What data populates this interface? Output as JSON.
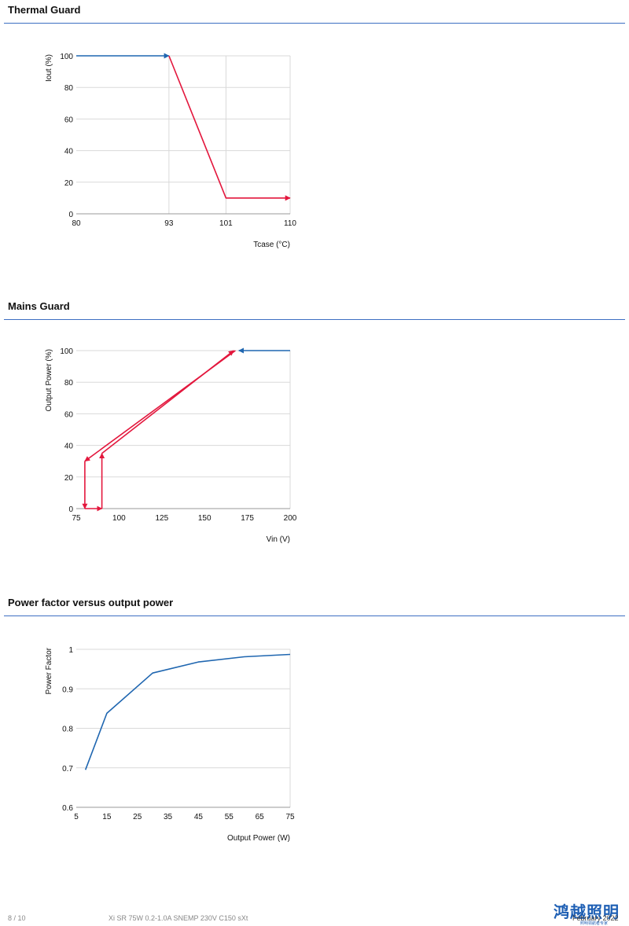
{
  "sections": [
    {
      "title": "Thermal Guard"
    },
    {
      "title": "Mains Guard"
    },
    {
      "title": "Power factor versus output power"
    }
  ],
  "chart_data": [
    {
      "type": "line",
      "title": "Thermal Guard",
      "xlabel": "Tcase (°C)",
      "ylabel": "Iout (%)",
      "xlim": [
        80,
        110
      ],
      "ylim": [
        0,
        100
      ],
      "xticks": [
        80,
        93,
        101,
        110
      ],
      "yticks": [
        0,
        20,
        40,
        60,
        80,
        100
      ],
      "grid": true,
      "series": [
        {
          "color": "#1f66b0",
          "x": [
            80,
            93
          ],
          "y": [
            100,
            100
          ]
        },
        {
          "color": "#e3173d",
          "x": [
            93,
            101,
            110
          ],
          "y": [
            100,
            10,
            10
          ]
        }
      ]
    },
    {
      "type": "line",
      "title": "Mains Guard",
      "xlabel": "Vin (V)",
      "ylabel": "Output Power (%)",
      "xlim": [
        75,
        200
      ],
      "ylim": [
        0,
        100
      ],
      "xticks": [
        75,
        100,
        125,
        150,
        175,
        200
      ],
      "yticks": [
        0,
        20,
        40,
        60,
        80,
        100
      ],
      "grid": true,
      "series": [
        {
          "color": "#1f66b0",
          "x": [
            200,
            170
          ],
          "y": [
            100,
            100
          ]
        },
        {
          "color": "#e3173d",
          "x": [
            168,
            80
          ],
          "y": [
            100,
            30
          ]
        },
        {
          "color": "#e3173d",
          "x": [
            80,
            80
          ],
          "y": [
            30,
            0
          ]
        },
        {
          "color": "#e3173d",
          "x": [
            80,
            90
          ],
          "y": [
            0,
            0
          ]
        },
        {
          "color": "#e3173d",
          "x": [
            90,
            90
          ],
          "y": [
            0,
            35
          ]
        },
        {
          "color": "#e3173d",
          "x": [
            90,
            167
          ],
          "y": [
            35,
            100
          ]
        }
      ]
    },
    {
      "type": "line",
      "title": "Power factor versus output power",
      "xlabel": "Output Power (W)",
      "ylabel": "Power Factor",
      "xlim": [
        5,
        75
      ],
      "ylim": [
        0.6,
        1
      ],
      "xticks": [
        5,
        15,
        25,
        35,
        45,
        55,
        65,
        75
      ],
      "yticks": [
        0.6,
        0.7,
        0.8,
        0.9,
        1
      ],
      "ytick_labels": [
        "0.6",
        "0.7",
        "0.8",
        "0.9",
        "1"
      ],
      "grid": true,
      "series": [
        {
          "color": "#1f66b0",
          "x": [
            8,
            15,
            30,
            45,
            60,
            75
          ],
          "y": [
            0.695,
            0.838,
            0.94,
            0.968,
            0.981,
            0.987
          ]
        }
      ]
    }
  ],
  "footer": {
    "page": "8 / 10",
    "product": "Xi SR 75W 0.2-1.0A SNEMP 230V C150 sXt",
    "date": "February 2022"
  },
  "watermark": {
    "logo_text": "鸿越照明",
    "sub_text": "照明领航者专家"
  }
}
